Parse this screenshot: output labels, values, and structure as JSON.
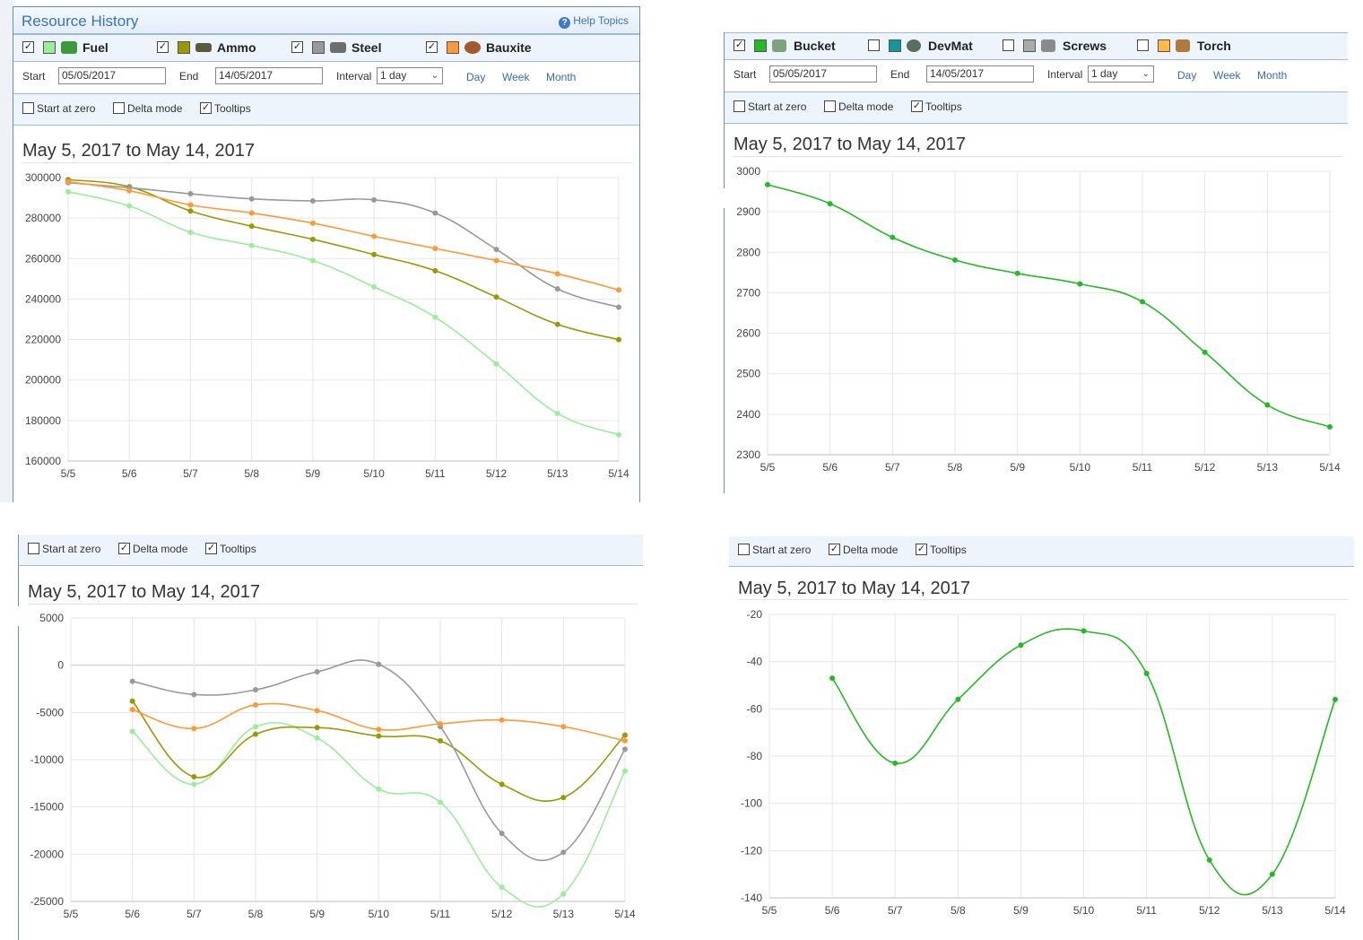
{
  "colors": {
    "fuel": "#99ee99",
    "ammo": "#999900",
    "steel": "#999999",
    "bauxite": "#ff9933",
    "bucket": "#22bb22",
    "devmat": "#119999",
    "screws": "#aaaaaa",
    "torch": "#ffbb44"
  },
  "panel1": {
    "title": "Resource History",
    "help": "Help Topics",
    "resources": [
      {
        "label": "Fuel",
        "checked": true,
        "icon": "fuel-icon"
      },
      {
        "label": "Ammo",
        "checked": true,
        "icon": "ammo-icon"
      },
      {
        "label": "Steel",
        "checked": true,
        "icon": "steel-icon"
      },
      {
        "label": "Bauxite",
        "checked": true,
        "icon": "bauxite-icon"
      }
    ],
    "start_label": "Start",
    "start_value": "05/05/2017",
    "end_label": "End",
    "end_value": "14/05/2017",
    "interval_label": "Interval",
    "interval_value": "1 day",
    "day": "Day",
    "week": "Week",
    "month": "Month",
    "opt_start_zero": "Start at zero",
    "opt_start_zero_checked": false,
    "opt_delta": "Delta mode",
    "opt_delta_checked": false,
    "opt_tooltips": "Tooltips",
    "opt_tooltips_checked": true,
    "range_title": "May 5, 2017 to May 14, 2017"
  },
  "panel2": {
    "resources": [
      {
        "label": "Bucket",
        "checked": true,
        "icon": "bucket-icon"
      },
      {
        "label": "DevMat",
        "checked": false,
        "icon": "devmat-icon"
      },
      {
        "label": "Screws",
        "checked": false,
        "icon": "screws-icon"
      },
      {
        "label": "Torch",
        "checked": false,
        "icon": "torch-icon"
      }
    ],
    "start_label": "Start",
    "start_value": "05/05/2017",
    "end_label": "End",
    "end_value": "14/05/2017",
    "interval_label": "Interval",
    "interval_value": "1 day",
    "day": "Day",
    "week": "Week",
    "month": "Month",
    "opt_start_zero": "Start at zero",
    "opt_start_zero_checked": false,
    "opt_delta": "Delta mode",
    "opt_delta_checked": false,
    "opt_tooltips": "Tooltips",
    "opt_tooltips_checked": true,
    "range_title": "May 5, 2017 to May 14, 2017"
  },
  "panel3": {
    "opt_start_zero": "Start at zero",
    "opt_start_zero_checked": false,
    "opt_delta": "Delta mode",
    "opt_delta_checked": true,
    "opt_tooltips": "Tooltips",
    "opt_tooltips_checked": true,
    "range_title": "May 5, 2017 to May 14, 2017"
  },
  "panel4": {
    "opt_start_zero": "Start at zero",
    "opt_start_zero_checked": false,
    "opt_delta": "Delta mode",
    "opt_delta_checked": true,
    "opt_tooltips": "Tooltips",
    "opt_tooltips_checked": true,
    "range_title": "May 5, 2017 to May 14, 2017"
  },
  "chart_data": [
    {
      "type": "line",
      "x": [
        "5/5",
        "5/6",
        "5/7",
        "5/8",
        "5/9",
        "5/10",
        "5/11",
        "5/12",
        "5/13",
        "5/14"
      ],
      "ylim": [
        160000,
        300000
      ],
      "yticks": [
        160000,
        180000,
        200000,
        220000,
        240000,
        260000,
        280000,
        300000
      ],
      "grid": true,
      "series": [
        {
          "name": "Fuel",
          "color": "#99ee99",
          "values": [
            293000,
            286000,
            273000,
            266500,
            259000,
            246000,
            231000,
            208000,
            183500,
            173000
          ]
        },
        {
          "name": "Ammo",
          "color": "#999900",
          "values": [
            299000,
            295500,
            283500,
            276000,
            269500,
            262000,
            254000,
            241000,
            227500,
            220000
          ]
        },
        {
          "name": "Steel",
          "color": "#999999",
          "values": [
            297500,
            295000,
            292000,
            289500,
            288500,
            289000,
            282500,
            264500,
            245000,
            236000
          ]
        },
        {
          "name": "Bauxite",
          "color": "#ff9933",
          "values": [
            298000,
            293500,
            286500,
            282500,
            277500,
            271000,
            265000,
            259000,
            252500,
            244500
          ]
        }
      ]
    },
    {
      "type": "line",
      "x": [
        "5/5",
        "5/6",
        "5/7",
        "5/8",
        "5/9",
        "5/10",
        "5/11",
        "5/12",
        "5/13",
        "5/14"
      ],
      "ylim": [
        2300,
        3000
      ],
      "yticks": [
        2300,
        2400,
        2500,
        2600,
        2700,
        2800,
        2900,
        3000
      ],
      "grid": true,
      "series": [
        {
          "name": "Bucket",
          "color": "#22bb22",
          "values": [
            2967,
            2920,
            2837,
            2781,
            2748,
            2722,
            2678,
            2553,
            2423,
            2369
          ]
        }
      ]
    },
    {
      "type": "line",
      "x": [
        "5/5",
        "5/6",
        "5/7",
        "5/8",
        "5/9",
        "5/10",
        "5/11",
        "5/12",
        "5/13",
        "5/14"
      ],
      "ylim": [
        -25000,
        5000
      ],
      "yticks": [
        -25000,
        -20000,
        -15000,
        -10000,
        -5000,
        0,
        5000
      ],
      "grid": true,
      "series": [
        {
          "name": "Fuel",
          "color": "#99ee99",
          "values": [
            null,
            -7000,
            -12600,
            -6500,
            -7700,
            -13100,
            -14500,
            -23500,
            -24200,
            -11200
          ]
        },
        {
          "name": "Ammo",
          "color": "#999900",
          "values": [
            null,
            -3800,
            -11800,
            -7300,
            -6600,
            -7500,
            -8000,
            -12600,
            -14000,
            -7400
          ]
        },
        {
          "name": "Steel",
          "color": "#999999",
          "values": [
            null,
            -1700,
            -3100,
            -2600,
            -700,
            100,
            -6500,
            -17800,
            -19800,
            -8900
          ]
        },
        {
          "name": "Bauxite",
          "color": "#ff9933",
          "values": [
            null,
            -4700,
            -6700,
            -4200,
            -4800,
            -6800,
            -6200,
            -5800,
            -6500,
            -8000
          ]
        }
      ]
    },
    {
      "type": "line",
      "x": [
        "5/5",
        "5/6",
        "5/7",
        "5/8",
        "5/9",
        "5/10",
        "5/11",
        "5/12",
        "5/13",
        "5/14"
      ],
      "ylim": [
        -140,
        -20
      ],
      "yticks": [
        -140,
        -120,
        -100,
        -80,
        -60,
        -40,
        -20
      ],
      "grid": true,
      "series": [
        {
          "name": "Bucket",
          "color": "#22bb22",
          "values": [
            null,
            -47,
            -83,
            -56,
            -33,
            -27,
            -45,
            -124,
            -130,
            -56
          ]
        }
      ]
    }
  ]
}
